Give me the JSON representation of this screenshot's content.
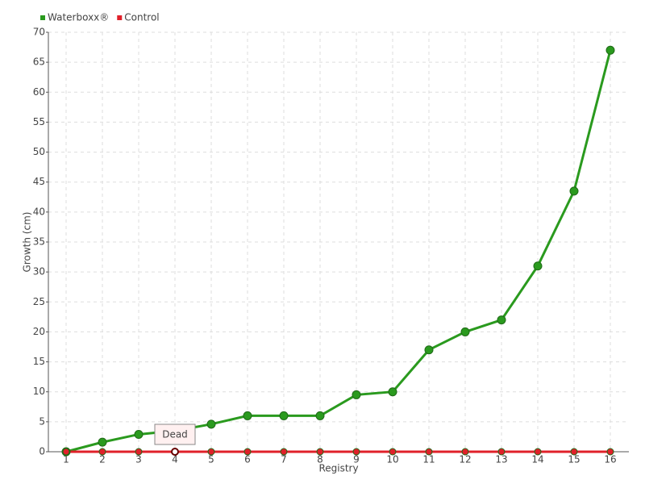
{
  "chart_data": {
    "type": "line",
    "x_label": "Registry",
    "y_label": "Growth (cm)",
    "categories": [
      "1",
      "2",
      "3",
      "4",
      "5",
      "6",
      "7",
      "8",
      "9",
      "10",
      "11",
      "12",
      "13",
      "14",
      "15",
      "16"
    ],
    "series": [
      {
        "name": "Waterboxx®",
        "color": "#2a9a1e",
        "values": [
          0,
          1.6,
          2.9,
          3.5,
          4.6,
          6,
          6,
          6,
          9.5,
          10,
          17,
          20,
          22,
          31,
          43.5,
          67
        ]
      },
      {
        "name": "Control",
        "color": "#e0202a",
        "values": [
          0,
          0,
          0,
          0,
          0,
          0,
          0,
          0,
          0,
          0,
          0,
          0,
          0,
          0,
          0,
          0
        ]
      }
    ],
    "ylim": [
      0,
      70
    ],
    "yticks": [
      0,
      5,
      10,
      15,
      20,
      25,
      30,
      35,
      40,
      45,
      50,
      55,
      60,
      65,
      70
    ],
    "grid": true,
    "legend": "top-left",
    "annotation": {
      "text": "Dead",
      "series": "Control",
      "category": "4"
    }
  }
}
